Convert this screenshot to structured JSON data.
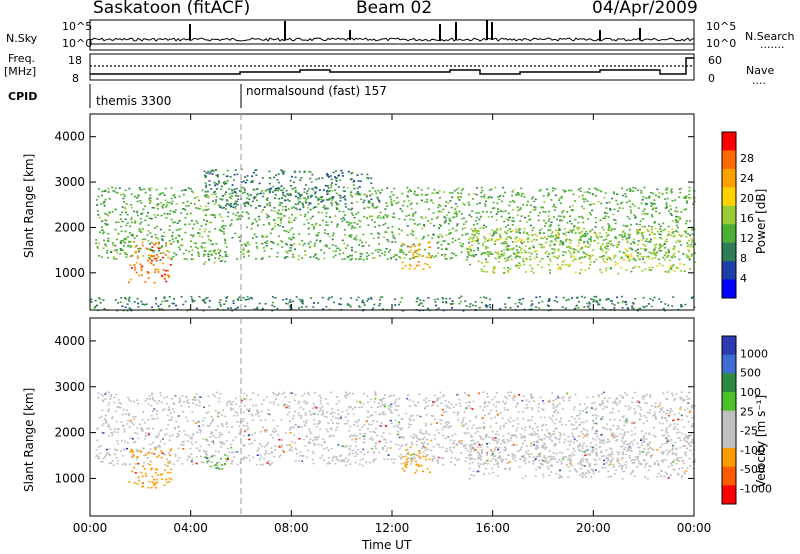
{
  "header": {
    "station": "Saskatoon (fitACF)",
    "beam": "Beam 02",
    "date": "04/Apr/2009"
  },
  "strip": {
    "nsky_label": "N.Sky",
    "nsearch_label": "N.Search",
    "freq_label_line1": "Freq.",
    "freq_label_line2": "[MHz]",
    "nave_label": "Nave",
    "cpid_label": "CPID",
    "nsky_ticks": [
      "10^5",
      "10^0"
    ],
    "nsearch_ticks": [
      "10^5",
      "10^0"
    ],
    "freq_ticks": [
      "18",
      "8"
    ],
    "nave_ticks": [
      "60",
      "0"
    ],
    "programs": [
      {
        "name": "themis 3300",
        "start_hour": 0
      },
      {
        "name": "normalsound (fast) 157",
        "start_hour": 6
      }
    ]
  },
  "chart_data": [
    {
      "type": "heatmap",
      "quantity": "Power",
      "ylabel": "Slant Range [km]",
      "xlim": [
        0,
        24
      ],
      "ylim": [
        180,
        4500
      ],
      "yticks": [
        "1000",
        "2000",
        "3000",
        "4000"
      ],
      "colorbar_label": "Power [dB]",
      "colorbar_ticks": [
        "4",
        "8",
        "12",
        "16",
        "20",
        "24",
        "28"
      ],
      "colors": [
        "#0000ff",
        "#1d3fa8",
        "#2e7d54",
        "#4caf35",
        "#9acd32",
        "#ffd200",
        "#ffa200",
        "#ff6a00",
        "#ff0000"
      ],
      "features": [
        {
          "name": "main scatter band",
          "hours": [
            0.2,
            24
          ],
          "range_km": [
            1300,
            2900
          ],
          "level_db": 10
        },
        {
          "name": "upper diffuse band",
          "hours": [
            4.5,
            11.5
          ],
          "range_km": [
            2400,
            3300
          ],
          "level_db": 6
        },
        {
          "name": "patch A",
          "hours": [
            1.5,
            3.2
          ],
          "range_km": [
            800,
            1700
          ],
          "level_db": 24
        },
        {
          "name": "patch B",
          "hours": [
            12.3,
            13.5
          ],
          "range_km": [
            1100,
            1700
          ],
          "level_db": 22
        },
        {
          "name": "patch C",
          "hours": [
            4.5,
            5.5
          ],
          "range_km": [
            1200,
            1600
          ],
          "level_db": 12
        },
        {
          "name": "near-range echoes",
          "hours": [
            0,
            24
          ],
          "range_km": [
            180,
            500
          ],
          "level_db": 8
        },
        {
          "name": "late band",
          "hours": [
            15,
            24
          ],
          "range_km": [
            1000,
            2000
          ],
          "level_db": 14
        }
      ]
    },
    {
      "type": "heatmap",
      "quantity": "Velocity",
      "ylabel": "Slant Range [km]",
      "xlabel": "Time UT",
      "xticks": [
        "00:00",
        "04:00",
        "08:00",
        "12:00",
        "16:00",
        "20:00",
        "00:00"
      ],
      "xlim": [
        0,
        24
      ],
      "ylim": [
        180,
        4500
      ],
      "yticks": [
        "1000",
        "2000",
        "3000",
        "4000"
      ],
      "colorbar_label": "Velocity [m s⁻¹]",
      "colorbar_ticks": [
        "1000",
        "500",
        "100",
        "25",
        "-25",
        "-100",
        "-500",
        "-1000"
      ],
      "colors": [
        "#2a3cb0",
        "#3e6fd0",
        "#2e8b3e",
        "#4fc12a",
        "#c0c0c0",
        "#c0c0c0",
        "#ff9c00",
        "#ff5a00",
        "#ff0000"
      ],
      "features": [
        {
          "name": "ground scatter band",
          "hours": [
            0.2,
            24
          ],
          "range_km": [
            1300,
            2900
          ],
          "velocity": 0
        },
        {
          "name": "patch A",
          "hours": [
            1.5,
            3.2
          ],
          "range_km": [
            800,
            1700
          ],
          "velocity": -300
        },
        {
          "name": "patch B",
          "hours": [
            12.3,
            13.5
          ],
          "range_km": [
            1100,
            1700
          ],
          "velocity": -300
        },
        {
          "name": "patch C",
          "hours": [
            4.5,
            5.5
          ],
          "range_km": [
            1200,
            1600
          ],
          "velocity": 150
        },
        {
          "name": "late band",
          "hours": [
            15,
            24
          ],
          "range_km": [
            1000,
            2000
          ],
          "velocity": 0
        }
      ]
    }
  ]
}
